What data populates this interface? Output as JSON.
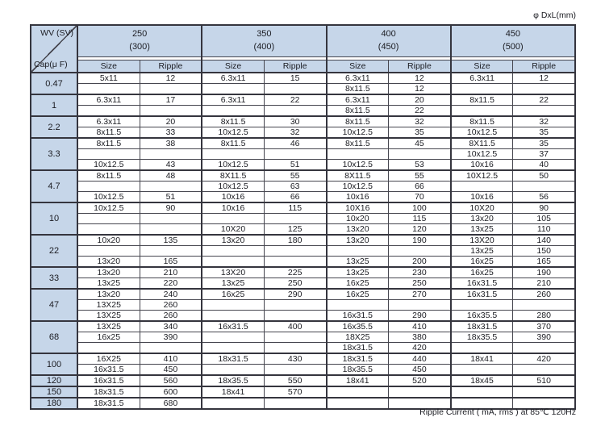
{
  "corner_note": "φ DxL(mm)",
  "footer_note": "Ripple Current ( mA, rms ) at 85℃ 120Hz",
  "header": {
    "corner_top": "WV (SV)",
    "corner_bottom": "Cap(μ F)",
    "columns": [
      {
        "main": "250",
        "sub": "(300)"
      },
      {
        "main": "350",
        "sub": "(400)"
      },
      {
        "main": "400",
        "sub": "(450)"
      },
      {
        "main": "450",
        "sub": "(500)"
      }
    ],
    "sub_headers": [
      "Size",
      "Ripple"
    ]
  },
  "colors": {
    "header_bg": "#c6d6e9",
    "border_thin": "#46464f",
    "border_thick": "#35353e",
    "text": "#1b1c22"
  },
  "groups": [
    {
      "cap": "0.47",
      "rows": [
        [
          "5x11",
          "12",
          "6.3x11",
          "15",
          "6.3x11",
          "12",
          "6.3x11",
          "12"
        ],
        [
          "",
          "",
          "",
          "",
          "8x11.5",
          "12",
          "",
          ""
        ]
      ]
    },
    {
      "cap": "1",
      "rows": [
        [
          "6.3x11",
          "17",
          "6.3x11",
          "22",
          "6.3x11",
          "20",
          "8x11.5",
          "22"
        ],
        [
          "",
          "",
          "",
          "",
          "8x11.5",
          "22",
          "",
          ""
        ]
      ]
    },
    {
      "cap": "2.2",
      "rows": [
        [
          "6.3x11",
          "20",
          "8x11.5",
          "30",
          "8x11.5",
          "32",
          "8x11.5",
          "32"
        ],
        [
          "8x11.5",
          "33",
          "10x12.5",
          "32",
          "10x12.5",
          "35",
          "10x12.5",
          "35"
        ]
      ]
    },
    {
      "cap": "3.3",
      "rows": [
        [
          "8x11.5",
          "38",
          "8x11.5",
          "46",
          "8x11.5",
          "45",
          "8X11.5",
          "35"
        ],
        [
          "",
          "",
          "",
          "",
          "",
          "",
          "10x12.5",
          "37"
        ],
        [
          "10x12.5",
          "43",
          "10x12.5",
          "51",
          "10x12.5",
          "53",
          "10x16",
          "40"
        ]
      ]
    },
    {
      "cap": "4.7",
      "rows": [
        [
          "8x11.5",
          "48",
          "8X11.5",
          "55",
          "8X11.5",
          "55",
          "10X12.5",
          "50"
        ],
        [
          "",
          "",
          "10x12.5",
          "63",
          "10x12.5",
          "66",
          "",
          ""
        ],
        [
          "10x12.5",
          "51",
          "10x16",
          "66",
          "10x16",
          "70",
          "10x16",
          "56"
        ]
      ]
    },
    {
      "cap": "10",
      "rows": [
        [
          "10x12.5",
          "90",
          "10x16",
          "115",
          "10X16",
          "100",
          "10X20",
          "90"
        ],
        [
          "",
          "",
          "",
          "",
          "10x20",
          "115",
          "13x20",
          "105"
        ],
        [
          "",
          "",
          "10X20",
          "125",
          "13x20",
          "120",
          "13x25",
          "110"
        ]
      ]
    },
    {
      "cap": "22",
      "rows": [
        [
          "10x20",
          "135",
          "13x20",
          "180",
          "13x20",
          "190",
          "13X20",
          "140"
        ],
        [
          "",
          "",
          "",
          "",
          "",
          "",
          "13x25",
          "150"
        ],
        [
          "13x20",
          "165",
          "",
          "",
          "13x25",
          "200",
          "16x25",
          "165"
        ]
      ]
    },
    {
      "cap": "33",
      "rows": [
        [
          "13x20",
          "210",
          "13X20",
          "225",
          "13x25",
          "230",
          "16x25",
          "190"
        ],
        [
          "13x25",
          "220",
          "13x25",
          "250",
          "16x25",
          "250",
          "16x31.5",
          "210"
        ]
      ]
    },
    {
      "cap": "47",
      "rows": [
        [
          "13x20",
          "240",
          "16x25",
          "290",
          "16x25",
          "270",
          "16x31.5",
          "260"
        ],
        [
          "13X25",
          "260",
          "",
          "",
          "",
          "",
          "",
          ""
        ],
        [
          "13X25",
          "260",
          "",
          "",
          "16x31.5",
          "290",
          "16x35.5",
          "280"
        ]
      ]
    },
    {
      "cap": "68",
      "rows": [
        [
          "13X25",
          "340",
          "16x31.5",
          "400",
          "16x35.5",
          "410",
          "18x31.5",
          "370"
        ],
        [
          "16x25",
          "390",
          "",
          "",
          "18X25",
          "380",
          "18x35.5",
          "390"
        ],
        [
          "",
          "",
          "",
          "",
          "18x31.5",
          "420",
          "",
          ""
        ]
      ]
    },
    {
      "cap": "100",
      "rows": [
        [
          "16X25",
          "410",
          "18x31.5",
          "430",
          "18x31.5",
          "440",
          "18x41",
          "420"
        ],
        [
          "16x31.5",
          "450",
          "",
          "",
          "18x35.5",
          "450",
          "",
          ""
        ]
      ]
    },
    {
      "cap": "120",
      "rows": [
        [
          "16x31.5",
          "560",
          "18x35.5",
          "550",
          "18x41",
          "520",
          "18x45",
          "510"
        ]
      ]
    },
    {
      "cap": "150",
      "rows": [
        [
          "18x31.5",
          "600",
          "18x41",
          "570",
          "",
          "",
          "",
          ""
        ]
      ]
    },
    {
      "cap": "180",
      "rows": [
        [
          "18x31.5",
          "680",
          "",
          "",
          "",
          "",
          "",
          ""
        ]
      ]
    }
  ]
}
